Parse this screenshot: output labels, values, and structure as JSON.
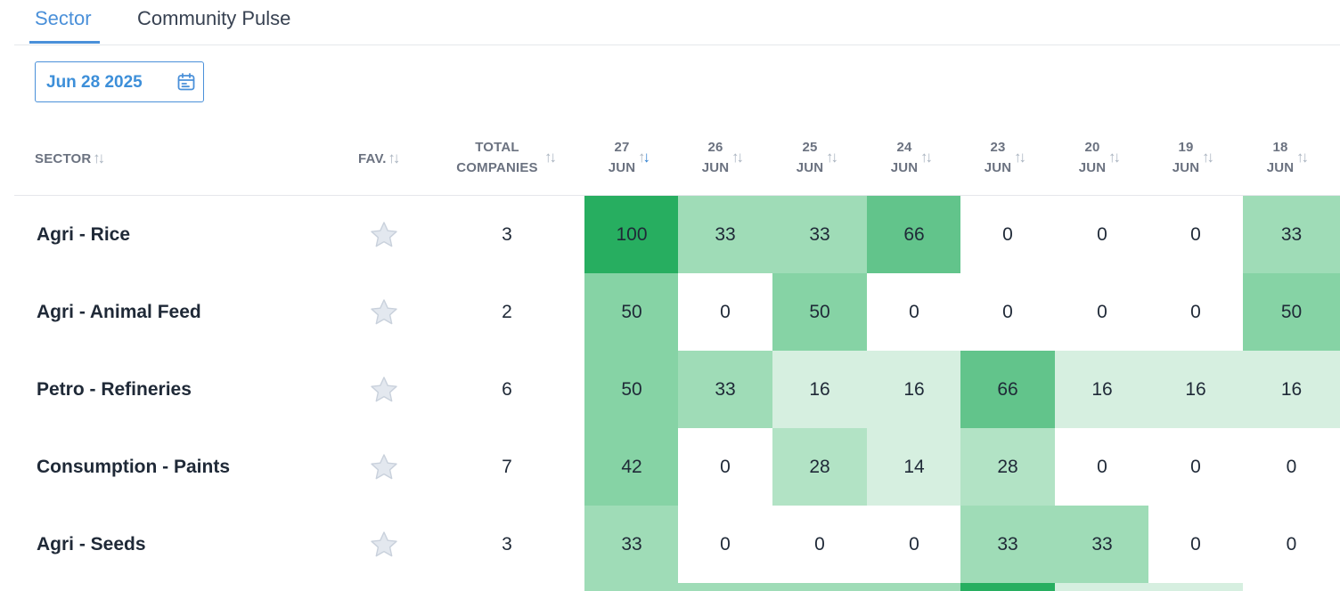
{
  "tabs": [
    {
      "label": "Sector",
      "active": true
    },
    {
      "label": "Community Pulse",
      "active": false
    }
  ],
  "date_picker": {
    "value": "Jun 28 2025",
    "icon": "calendar-icon"
  },
  "headers": {
    "sector": "SECTOR",
    "fav": "FAV.",
    "total_line1": "TOTAL",
    "total_line2": "COMPANIES",
    "dates": [
      {
        "day": "27",
        "month": "JUN",
        "sorted": true
      },
      {
        "day": "26",
        "month": "JUN",
        "sorted": false
      },
      {
        "day": "25",
        "month": "JUN",
        "sorted": false
      },
      {
        "day": "24",
        "month": "JUN",
        "sorted": false
      },
      {
        "day": "23",
        "month": "JUN",
        "sorted": false
      },
      {
        "day": "20",
        "month": "JUN",
        "sorted": false
      },
      {
        "day": "19",
        "month": "JUN",
        "sorted": false
      },
      {
        "day": "18",
        "month": "JUN",
        "sorted": false
      }
    ]
  },
  "colors": {
    "accent": "#4a90d9",
    "heat": {
      "100": "#27ae60",
      "66": "#62c48b",
      "50": "#86d3a5",
      "42": "#86d3a5",
      "33": "#9fdcb7",
      "28": "#b2e3c5",
      "16": "#d6efe0",
      "14": "#d6efe0",
      "0": "#ffffff"
    }
  },
  "rows": [
    {
      "sector": "Agri - Rice",
      "total": "3",
      "values": [
        "100",
        "33",
        "33",
        "66",
        "0",
        "0",
        "0",
        "33"
      ]
    },
    {
      "sector": "Agri - Animal Feed",
      "total": "2",
      "values": [
        "50",
        "0",
        "50",
        "0",
        "0",
        "0",
        "0",
        "50"
      ]
    },
    {
      "sector": "Petro - Refineries",
      "total": "6",
      "values": [
        "50",
        "33",
        "16",
        "16",
        "66",
        "16",
        "16",
        "16"
      ]
    },
    {
      "sector": "Consumption - Paints",
      "total": "7",
      "values": [
        "42",
        "0",
        "28",
        "14",
        "28",
        "0",
        "0",
        "0"
      ]
    },
    {
      "sector": "Agri - Seeds",
      "total": "3",
      "values": [
        "33",
        "0",
        "0",
        "0",
        "33",
        "33",
        "0",
        "0"
      ]
    }
  ],
  "partial_next_row_colors": [
    "#9fdcb7",
    "#9fdcb7",
    "#9fdcb7",
    "#9fdcb7",
    "#27ae60",
    "#d6efe0",
    "#d6efe0",
    "#ffffff"
  ]
}
